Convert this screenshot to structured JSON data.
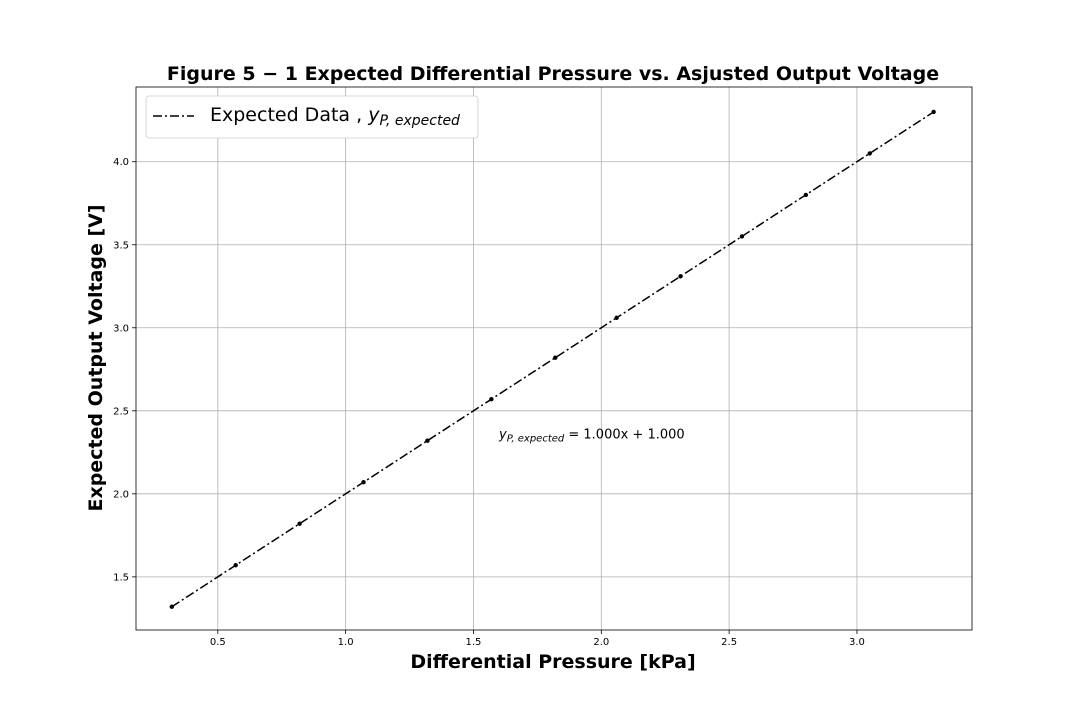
{
  "chart_data": {
    "type": "line",
    "title": "Figure 5 − 1 Expected Differential Pressure vs. Asjusted Output Voltage",
    "xlabel": "Differential Pressure [kPa]",
    "ylabel": "Expected Output Voltage [V]",
    "xlim": [
      0.18,
      3.45
    ],
    "ylim": [
      1.18,
      4.45
    ],
    "xticks": [
      "0.5",
      "1.0",
      "1.5",
      "2.0",
      "2.5",
      "3.0"
    ],
    "yticks": [
      "1.5",
      "2.0",
      "2.5",
      "3.0",
      "3.5",
      "4.0"
    ],
    "grid": true,
    "legend_position": "top-left",
    "series": [
      {
        "name": "Expected Data ,",
        "name_math_base": "y",
        "name_math_sub": "P, expected",
        "color": "#000000",
        "line_style": "dash-dot",
        "marker": "dot",
        "x": [
          0.32,
          0.57,
          0.82,
          1.07,
          1.32,
          1.57,
          1.82,
          2.06,
          2.31,
          2.55,
          2.8,
          3.05,
          3.3
        ],
        "y": [
          1.32,
          1.57,
          1.82,
          2.07,
          2.32,
          2.57,
          2.82,
          3.06,
          3.31,
          3.55,
          3.8,
          4.05,
          4.3
        ]
      }
    ],
    "annotation": {
      "base": "y",
      "sub": "P, expected",
      "equation": " = 1.000x + 1.000",
      "x": 1.6,
      "y": 2.32
    }
  }
}
